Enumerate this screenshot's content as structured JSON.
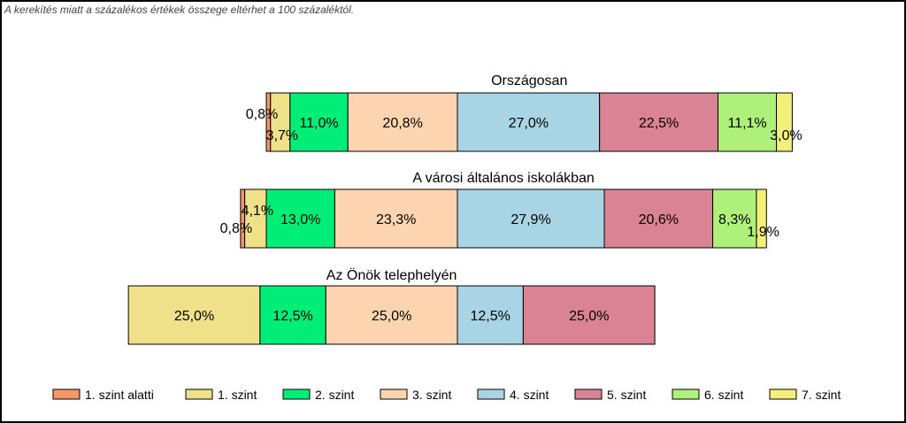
{
  "note": "A kerekítés miatt a  százalékos értékek összege eltérhet a 100 százaléktól.",
  "chart_data": {
    "type": "bar",
    "stacked": "100%",
    "orientation": "horizontal",
    "categories": [
      "1. szint alatti",
      "1. szint",
      "2. szint",
      "3. szint",
      "4. szint",
      "5. szint",
      "6. szint",
      "7. szint"
    ],
    "colors": [
      "#F4956A",
      "#EFE08A",
      "#00EE77",
      "#FCD5B0",
      "#A8D4E4",
      "#D98394",
      "#AFF07A",
      "#F2F07A"
    ],
    "groups": [
      {
        "title": "Országosan",
        "values": [
          0.8,
          3.7,
          11.0,
          20.8,
          27.0,
          22.5,
          11.1,
          3.0
        ],
        "labels": [
          "0,8%",
          "3,7%",
          "11,0%",
          "20,8%",
          "27,0%",
          "22,5%",
          "11,1%",
          "3,0%"
        ]
      },
      {
        "title": "A városi általános iskolákban",
        "values": [
          0.8,
          4.1,
          13.0,
          23.3,
          27.9,
          20.6,
          8.3,
          1.9
        ],
        "labels": [
          "0,8%",
          "4,1%",
          "13,0%",
          "23,3%",
          "27,9%",
          "20,6%",
          "8,3%",
          "1,9%"
        ]
      },
      {
        "title": "Az Önök telephelyén",
        "values": [
          0,
          25.0,
          12.5,
          25.0,
          12.5,
          25.0,
          0,
          0
        ],
        "labels": [
          "",
          "25,0%",
          "12,5%",
          "25,0%",
          "12,5%",
          "25,0%",
          "",
          ""
        ]
      }
    ],
    "legend": [
      "1. szint alatti",
      "1. szint",
      "2. szint",
      "3. szint",
      "4. szint",
      "5. szint",
      "6. szint",
      "7. szint"
    ],
    "legend_position": "bottom"
  }
}
